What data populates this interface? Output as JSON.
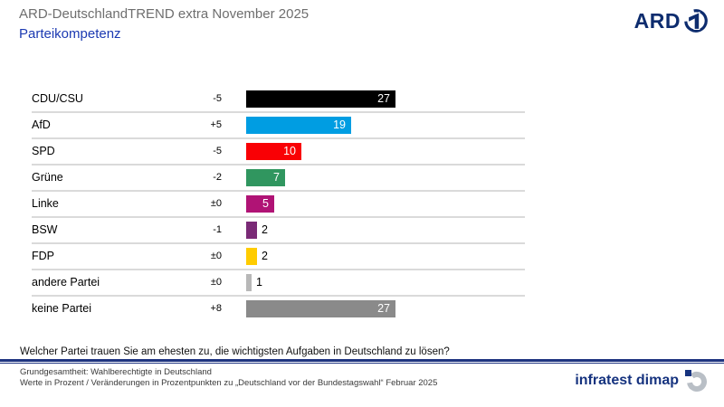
{
  "header": {
    "title": "ARD-DeutschlandTREND extra November 2025",
    "subtitle": "Parteikompetenz",
    "ard_logo_text": "ARD"
  },
  "chart_data": {
    "type": "bar",
    "orientation": "horizontal",
    "title": "Parteikompetenz",
    "categories": [
      "CDU/CSU",
      "AfD",
      "SPD",
      "Grüne",
      "Linke",
      "BSW",
      "FDP",
      "andere Partei",
      "keine Partei"
    ],
    "values": [
      27,
      19,
      10,
      7,
      5,
      2,
      2,
      1,
      27
    ],
    "changes": [
      "-5",
      "+5",
      "-5",
      "-2",
      "±0",
      "-1",
      "±0",
      "±0",
      "+8"
    ],
    "bar_colors": [
      "#000000",
      "#009de2",
      "#f90005",
      "#30965f",
      "#b01375",
      "#7a2a76",
      "#ffcc00",
      "#b8b8b8",
      "#8a8a8a"
    ],
    "xlim": [
      0,
      27
    ],
    "unit": "Prozent",
    "value_label_inside_min": 5,
    "grid": false,
    "legend": false
  },
  "question": "Welcher Partei trauen Sie am ehesten zu, die wichtigsten Aufgaben in Deutschland zu lösen?",
  "footer": {
    "line1": "Grundgesamtheit: Wahlberechtigte in Deutschland",
    "line2": "Werte in Prozent / Veränderungen in Prozentpunkten zu „Deutschland vor der Bundestagswahl“ Februar 2025",
    "brand": "infratest dimap"
  },
  "colors": {
    "title_gray": "#6e6e6e",
    "subtitle_blue": "#1c3ab2",
    "brand_blue": "#16337f",
    "rule_blue": "#1e3480",
    "separator_gray": "#dadada"
  }
}
